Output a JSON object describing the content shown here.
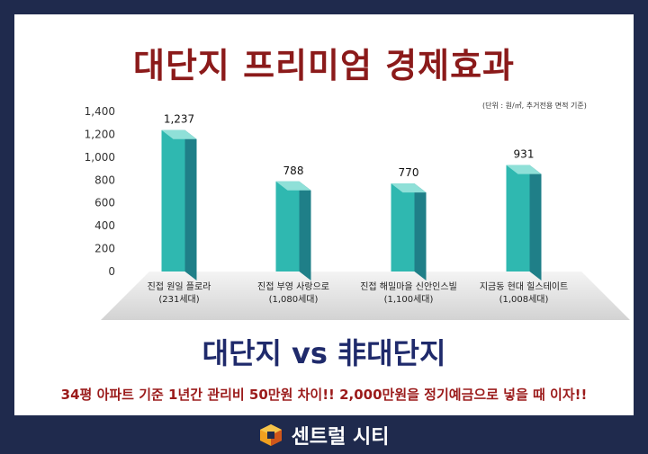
{
  "header": {
    "title": "대단지 프리미엄 경제효과",
    "unit_note": "(단위 : 원/㎡, 추거전용 면적 기준)"
  },
  "chart_data": {
    "type": "bar",
    "categories": [
      [
        "진접 원일 플로라",
        "(231세대)"
      ],
      [
        "진접 부영 사랑으로",
        "(1,080세대)"
      ],
      [
        "진접 해밀마을 신안인스빌",
        "(1,100세대)"
      ],
      [
        "지금동 현대 힐스테이트",
        "(1,008세대)"
      ]
    ],
    "values": [
      1237,
      788,
      770,
      931
    ],
    "value_labels": [
      "1,237",
      "788",
      "770",
      "931"
    ],
    "yticks": [
      "0",
      "200",
      "400",
      "600",
      "800",
      "1,000",
      "1,200",
      "1,400"
    ],
    "ylim": [
      0,
      1400
    ],
    "grid": false,
    "colors": {
      "front": "#2fb8b0",
      "side": "#1f7f88",
      "top": "#8fe0d8"
    }
  },
  "footer": {
    "subtitle": "대단지 vs 非대단지",
    "tagline": "34평 아파트 기준 1년간 관리비 50만원 차이!!  2,000만원을 정기예금으로 넣을 때 이자!!",
    "brand": "센트럴 시티",
    "brand_colors": {
      "primary": "#e0681a",
      "secondary": "#f0a020"
    }
  }
}
